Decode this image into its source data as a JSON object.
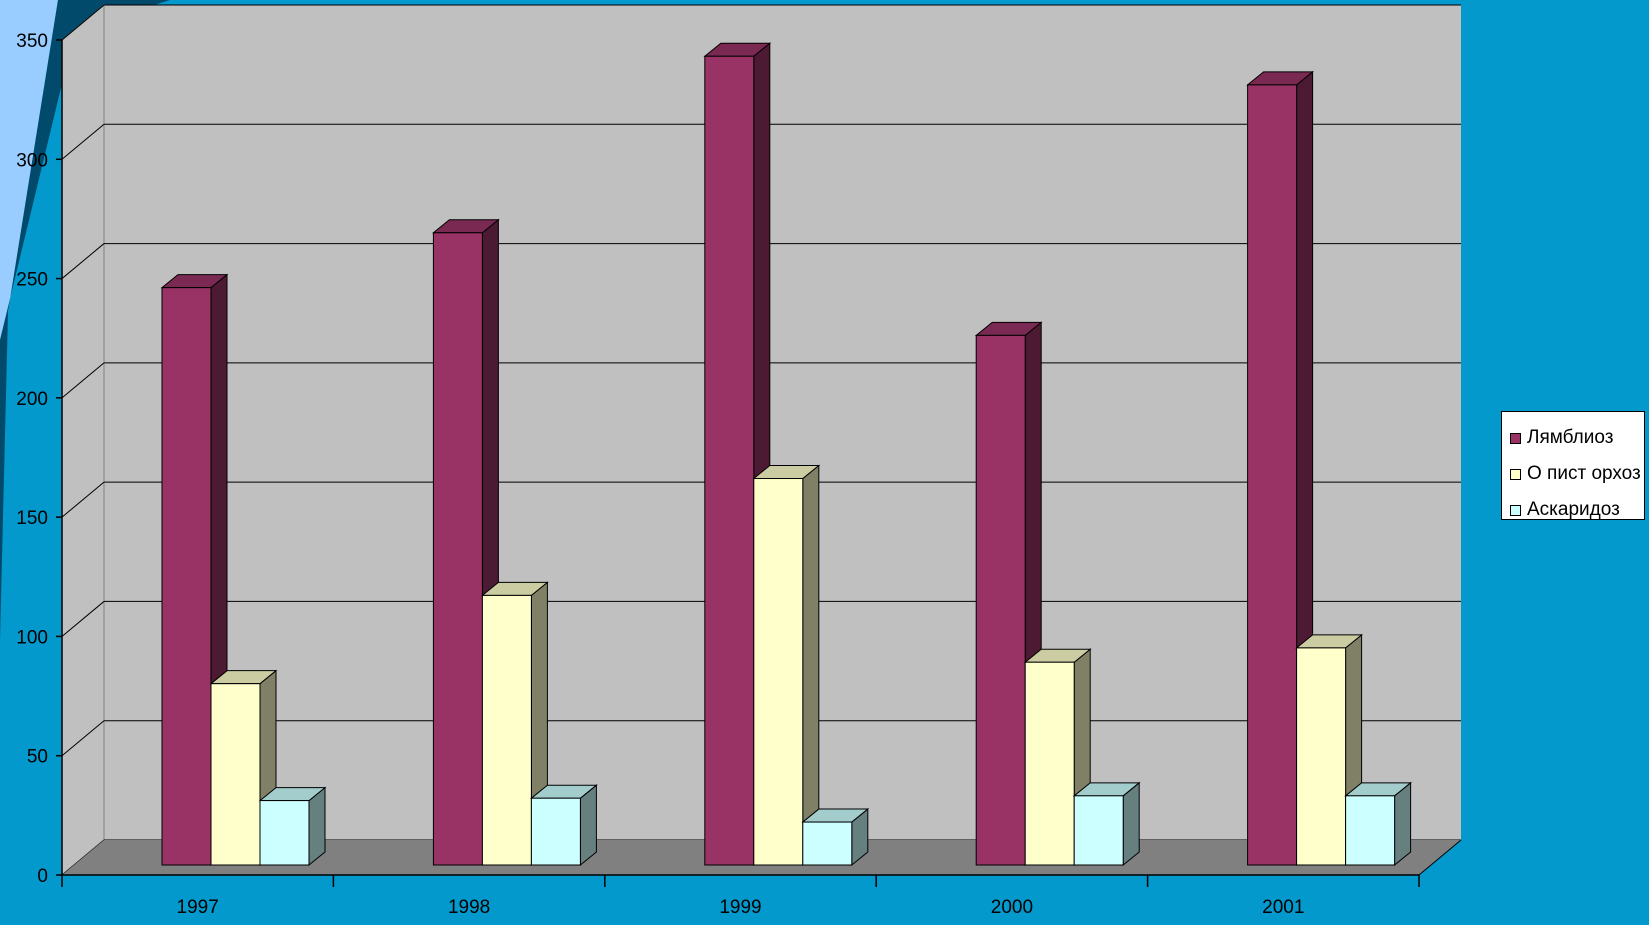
{
  "chart_data": {
    "type": "bar",
    "categories": [
      "1997",
      "1998",
      "1999",
      "2000",
      "2001"
    ],
    "series": [
      {
        "name": "Лямблиоз",
        "values": [
          242,
          265,
          339,
          222,
          327
        ],
        "color": "#993366"
      },
      {
        "name": "О пист орхоз",
        "values": [
          76,
          113,
          162,
          85,
          91
        ],
        "color": "#ffffcc"
      },
      {
        "name": "Аскаридоз",
        "values": [
          27,
          28,
          18,
          29,
          29
        ],
        "color": "#ccffff"
      }
    ],
    "yticks": [
      0,
      50,
      100,
      150,
      200,
      250,
      300,
      350
    ],
    "ylim": [
      0,
      350
    ],
    "title": "",
    "xlabel": "",
    "ylabel": "",
    "grid": true,
    "legend_position": "right",
    "style": "3d-clustered-column",
    "colors": {
      "background": "#0399cc",
      "wall": "#c0c0c0",
      "floor": "#808080",
      "light_blue_decor": "#99ccff",
      "dark_blue_decor": "#024a6c"
    }
  }
}
